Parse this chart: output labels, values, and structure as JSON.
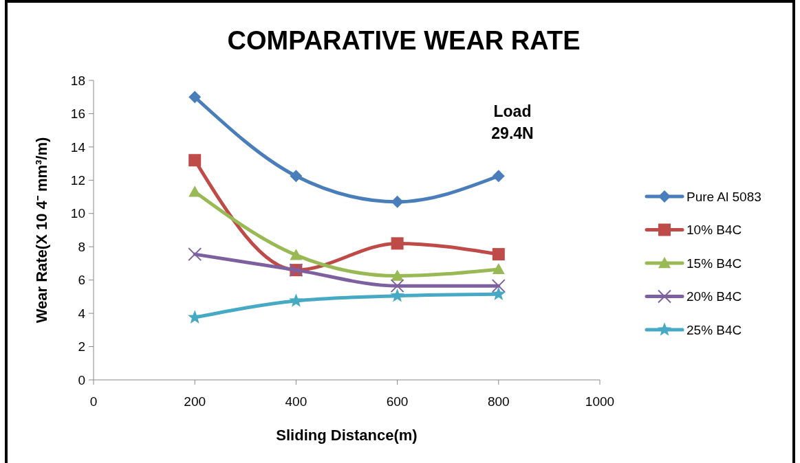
{
  "chart_data": {
    "type": "line",
    "title": "COMPARATIVE WEAR RATE",
    "xlabel": "Sliding Distance(m)",
    "ylabel": "Wear Rate(X 10 4⁻ mm³/m)",
    "annotations": [
      "Load\n29.4N"
    ],
    "x": [
      200,
      400,
      600,
      800
    ],
    "xlim": [
      0,
      1000
    ],
    "xticks": [
      0,
      200,
      400,
      600,
      800,
      1000
    ],
    "ylim": [
      0,
      18
    ],
    "yticks": [
      0,
      2,
      4,
      6,
      8,
      10,
      12,
      14,
      16,
      18
    ],
    "grid": false,
    "legend": "right",
    "line_style": "solid",
    "series": [
      {
        "name": "Pure Al 5083",
        "color": "#4a7ebb",
        "marker": "diamond",
        "values": [
          17,
          12.25,
          10.7,
          12.25
        ]
      },
      {
        "name": "10% B4C",
        "color": "#be4b48",
        "marker": "square",
        "values": [
          13.2,
          6.6,
          8.2,
          7.55
        ]
      },
      {
        "name": "15% B4C",
        "color": "#98b954",
        "marker": "triangle",
        "values": [
          11.3,
          7.5,
          6.25,
          6.65
        ]
      },
      {
        "name": "20% B4C",
        "color": "#7d60a0",
        "marker": "cross",
        "values": [
          7.55,
          6.6,
          5.65,
          5.65
        ]
      },
      {
        "name": "25% B4C",
        "color": "#46aac5",
        "marker": "star",
        "values": [
          3.75,
          4.75,
          5.05,
          5.15
        ]
      }
    ]
  }
}
